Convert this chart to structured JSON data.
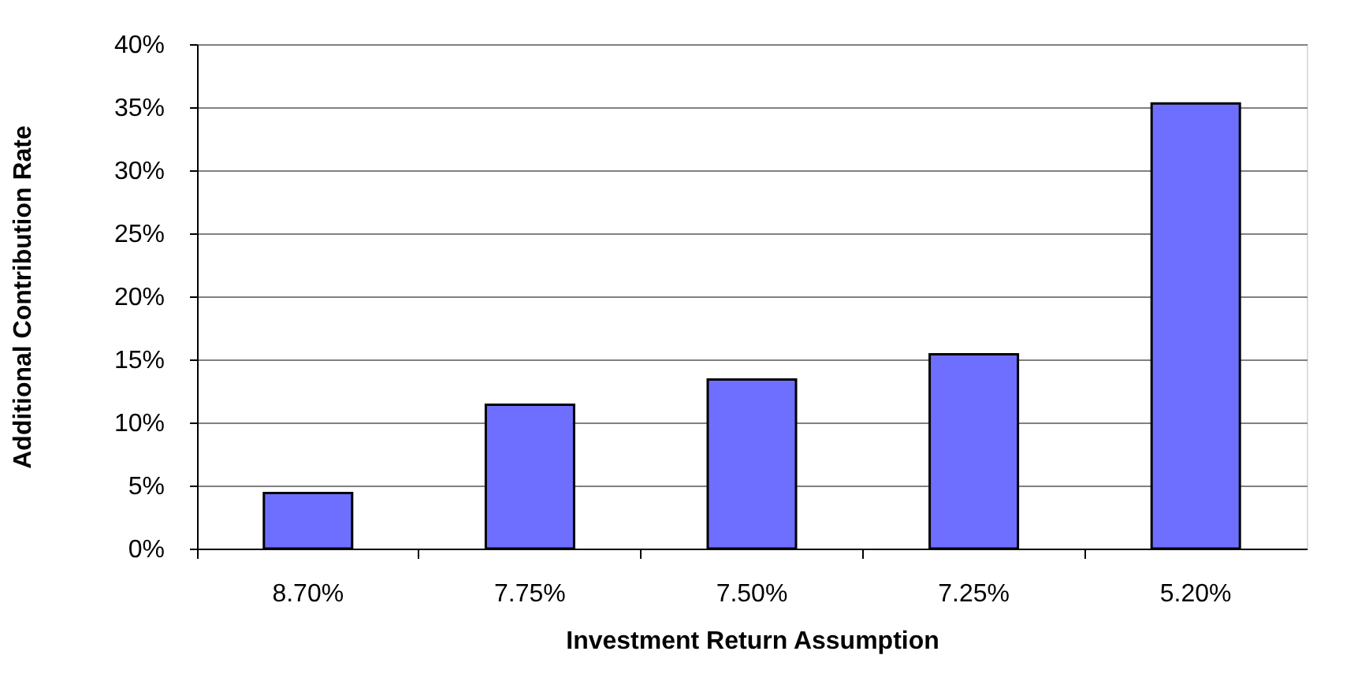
{
  "chart_data": {
    "type": "bar",
    "xlabel": "Investment Return Assumption",
    "ylabel": "Additional Contribution Rate",
    "categories": [
      "8.70%",
      "7.75%",
      "7.50%",
      "7.25%",
      "5.20%"
    ],
    "values": [
      4.4,
      11.4,
      13.4,
      15.4,
      35.3
    ],
    "color": "#6f6fff",
    "ylim": [
      0,
      40
    ],
    "yticks": [
      {
        "value": 0,
        "label": "0%"
      },
      {
        "value": 5,
        "label": "5%"
      },
      {
        "value": 10,
        "label": "10%"
      },
      {
        "value": 15,
        "label": "15%"
      },
      {
        "value": 20,
        "label": "20%"
      },
      {
        "value": 25,
        "label": "25%"
      },
      {
        "value": 30,
        "label": "30%"
      },
      {
        "value": 35,
        "label": "35%"
      },
      {
        "value": 40,
        "label": "40%"
      }
    ],
    "grid": "y"
  }
}
